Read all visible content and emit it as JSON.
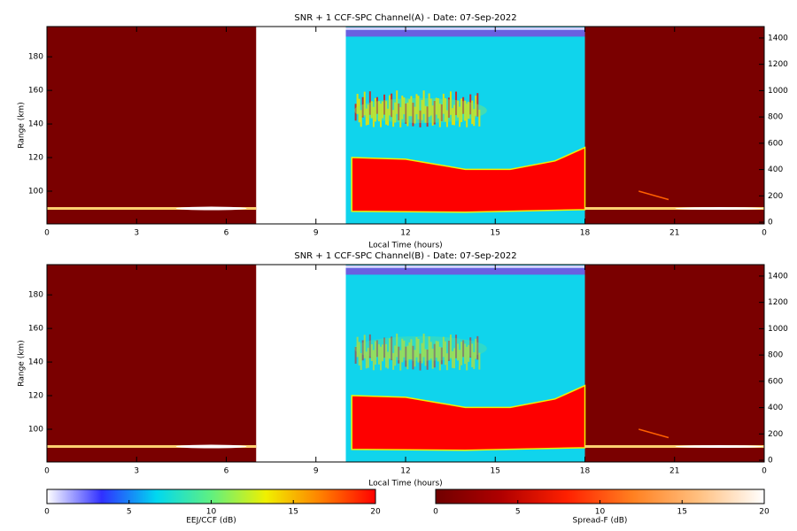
{
  "chart_data": [
    {
      "type": "heatmap",
      "title": "SNR + 1 CCF-SPC Channel(A) - Date: 07-Sep-2022",
      "x_label": "Local Time (hours)",
      "y_label": "Range (km)",
      "xlim": [
        0,
        24
      ],
      "xticks": [
        0,
        3,
        6,
        9,
        12,
        15,
        18,
        21,
        {
          "value": 24,
          "label": "0"
        }
      ],
      "ylim": [
        80.5,
        198
      ],
      "yticks": [
        100,
        120,
        140,
        160,
        180
      ],
      "y2lim": [
        -13,
        1487
      ],
      "y2ticks": [
        0,
        200,
        400,
        600,
        800,
        1000,
        1200,
        1400
      ]
    },
    {
      "type": "heatmap",
      "title": "SNR + 1 CCF-SPC Channel(B) - Date: 07-Sep-2022",
      "x_label": "Local Time (hours)",
      "y_label": "Range (km)",
      "xlim": [
        0,
        24
      ],
      "xticks": [
        0,
        3,
        6,
        9,
        12,
        15,
        18,
        21,
        {
          "value": 24,
          "label": "0"
        }
      ],
      "ylim": [
        80.5,
        198
      ],
      "yticks": [
        100,
        120,
        140,
        160,
        180
      ],
      "y2lim": [
        -13,
        1487
      ],
      "y2ticks": [
        0,
        200,
        400,
        600,
        800,
        1000,
        1200,
        1400
      ]
    }
  ],
  "colorbars": [
    {
      "label": "EEJ/CCF (dB)",
      "lim": [
        0,
        20
      ],
      "ticks": [
        0,
        5,
        10,
        15,
        20
      ],
      "colors": [
        "#ffffff",
        "#3030ff",
        "#00d8f0",
        "#60f080",
        "#f0f000",
        "#ff8000",
        "#ff0000"
      ]
    },
    {
      "label": "Spread-F (dB)",
      "lim": [
        0,
        20
      ],
      "ticks": [
        0,
        5,
        10,
        15,
        20
      ],
      "colors": [
        "#700000",
        "#b00000",
        "#ff2000",
        "#ff8020",
        "#ffc080",
        "#ffffff"
      ]
    }
  ]
}
